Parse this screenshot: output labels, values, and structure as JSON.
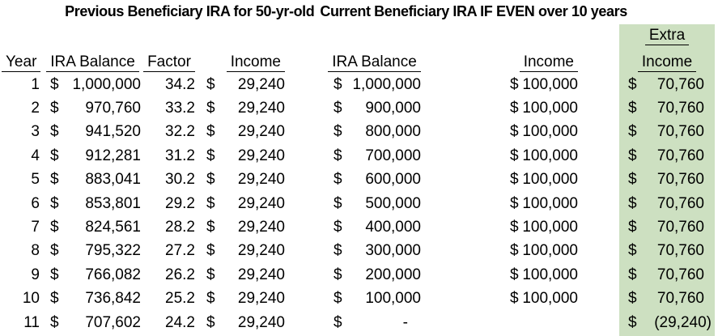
{
  "title": {
    "left": "Previous Beneficiary IRA for 50-yr-old",
    "right": "Current Beneficiary IRA IF EVEN over 10 years"
  },
  "headers": {
    "year": "Year",
    "prev_ira_balance": "IRA Balance",
    "factor": "Factor",
    "prev_income": "Income",
    "curr_ira_balance": "IRA Balance",
    "curr_income": "Income",
    "extra_line1": "Extra",
    "extra_line2": "Income"
  },
  "currency_symbol": "$",
  "colors": {
    "extra_column_highlight": "#cde0c1",
    "text": "#000000",
    "background": "#ffffff"
  },
  "rows": [
    {
      "year": "1",
      "prev_balance": "1,000,000",
      "factor": "34.2",
      "prev_income": "29,240",
      "curr_balance": "1,000,000",
      "curr_income": "100,000",
      "extra_income": "70,760"
    },
    {
      "year": "2",
      "prev_balance": "970,760",
      "factor": "33.2",
      "prev_income": "29,240",
      "curr_balance": "900,000",
      "curr_income": "100,000",
      "extra_income": "70,760"
    },
    {
      "year": "3",
      "prev_balance": "941,520",
      "factor": "32.2",
      "prev_income": "29,240",
      "curr_balance": "800,000",
      "curr_income": "100,000",
      "extra_income": "70,760"
    },
    {
      "year": "4",
      "prev_balance": "912,281",
      "factor": "31.2",
      "prev_income": "29,240",
      "curr_balance": "700,000",
      "curr_income": "100,000",
      "extra_income": "70,760"
    },
    {
      "year": "5",
      "prev_balance": "883,041",
      "factor": "30.2",
      "prev_income": "29,240",
      "curr_balance": "600,000",
      "curr_income": "100,000",
      "extra_income": "70,760"
    },
    {
      "year": "6",
      "prev_balance": "853,801",
      "factor": "29.2",
      "prev_income": "29,240",
      "curr_balance": "500,000",
      "curr_income": "100,000",
      "extra_income": "70,760"
    },
    {
      "year": "7",
      "prev_balance": "824,561",
      "factor": "28.2",
      "prev_income": "29,240",
      "curr_balance": "400,000",
      "curr_income": "100,000",
      "extra_income": "70,760"
    },
    {
      "year": "8",
      "prev_balance": "795,322",
      "factor": "27.2",
      "prev_income": "29,240",
      "curr_balance": "300,000",
      "curr_income": "100,000",
      "extra_income": "70,760"
    },
    {
      "year": "9",
      "prev_balance": "766,082",
      "factor": "26.2",
      "prev_income": "29,240",
      "curr_balance": "200,000",
      "curr_income": "100,000",
      "extra_income": "70,760"
    },
    {
      "year": "10",
      "prev_balance": "736,842",
      "factor": "25.2",
      "prev_income": "29,240",
      "curr_balance": "100,000",
      "curr_income": "100,000",
      "extra_income": "70,760"
    },
    {
      "year": "11",
      "prev_balance": "707,602",
      "factor": "24.2",
      "prev_income": "29,240",
      "curr_balance": "-",
      "curr_income": null,
      "extra_income": "(29,240)"
    }
  ]
}
